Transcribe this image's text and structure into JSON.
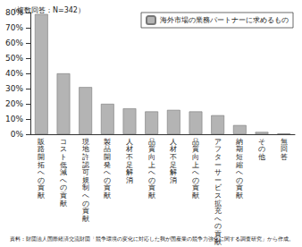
{
  "chart_data": {
    "type": "bar",
    "subtitle": "（複数回答：N=342）",
    "source": "資料：財団法人国際経済交流財団「競争環境の変化に対応した我が国産業の競争力強化に関する調査研究」から作成。",
    "categories": [
      "販路開拓への貢献",
      "コスト低減への貢献",
      "現地許認可規制への貢献",
      "製品開発への貢献",
      "人材不足解消",
      "品質向上への貢献",
      "人材不足解消",
      "品質向上への貢献",
      "アフターサービス拡充への貢献",
      "納期短縮への貢献",
      "その他",
      "無回答"
    ],
    "series": [
      {
        "name": "海外市場の業務パートナーに求めるもの",
        "color": "#b4b4b4",
        "values": [
          79,
          40,
          31,
          20,
          17,
          15,
          16,
          15,
          12.5,
          6,
          1.5,
          0.5
        ]
      }
    ],
    "ylim": [
      0,
      80
    ],
    "yticks": [
      {
        "value": 0,
        "label": "0%"
      },
      {
        "value": 10,
        "label": "10%"
      },
      {
        "value": 20,
        "label": "20%"
      },
      {
        "value": 30,
        "label": "30%"
      },
      {
        "value": 40,
        "label": "40%"
      },
      {
        "value": 50,
        "label": "50%"
      },
      {
        "value": 60,
        "label": "60%"
      },
      {
        "value": 70,
        "label": "70%"
      },
      {
        "value": 80,
        "label": "80%"
      }
    ],
    "legend": "top-right",
    "grid": false
  }
}
